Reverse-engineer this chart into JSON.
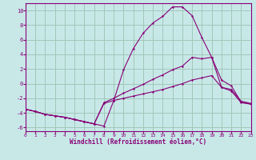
{
  "xlabel": "Windchill (Refroidissement éolien,°C)",
  "background_color": "#c8e8e8",
  "grid_color": "#a0c8b8",
  "line_color": "#880077",
  "xlim": [
    0,
    23
  ],
  "ylim": [
    -6.5,
    11.0
  ],
  "xticks": [
    0,
    1,
    2,
    3,
    4,
    5,
    6,
    7,
    8,
    9,
    10,
    11,
    12,
    13,
    14,
    15,
    16,
    17,
    18,
    19,
    20,
    21,
    22,
    23
  ],
  "yticks": [
    -6,
    -4,
    -2,
    0,
    2,
    4,
    6,
    8,
    10
  ],
  "line1_x": [
    0,
    1,
    2,
    3,
    4,
    5,
    6,
    7,
    8,
    9,
    10,
    11,
    12,
    13,
    14,
    15,
    16,
    17,
    18,
    19,
    20,
    21,
    22,
    23
  ],
  "line1_y": [
    -3.5,
    -3.8,
    -4.2,
    -4.4,
    -4.6,
    -4.9,
    -5.2,
    -5.5,
    -5.8,
    -2.3,
    1.9,
    4.8,
    6.9,
    8.3,
    9.2,
    10.5,
    10.5,
    9.3,
    6.3,
    3.6,
    -0.5,
    -1.0,
    -2.6,
    -2.8
  ],
  "line2_x": [
    0,
    1,
    2,
    3,
    4,
    5,
    6,
    7,
    8,
    9,
    10,
    11,
    12,
    13,
    14,
    15,
    16,
    17,
    18,
    19,
    20,
    21,
    22,
    23
  ],
  "line2_y": [
    -3.5,
    -3.8,
    -4.2,
    -4.4,
    -4.6,
    -4.9,
    -5.2,
    -5.5,
    -2.6,
    -2.0,
    -1.3,
    -0.7,
    -0.1,
    0.6,
    1.2,
    1.9,
    2.4,
    3.6,
    3.4,
    3.6,
    0.5,
    -0.3,
    -2.5,
    -2.8
  ],
  "line3_x": [
    0,
    1,
    2,
    3,
    4,
    5,
    6,
    7,
    8,
    9,
    10,
    11,
    12,
    13,
    14,
    15,
    16,
    17,
    18,
    19,
    20,
    21,
    22,
    23
  ],
  "line3_y": [
    -3.5,
    -3.8,
    -4.2,
    -4.4,
    -4.6,
    -4.9,
    -5.2,
    -5.5,
    -2.7,
    -2.3,
    -2.0,
    -1.7,
    -1.4,
    -1.1,
    -0.8,
    -0.4,
    0.0,
    0.5,
    0.8,
    1.1,
    -0.5,
    -0.8,
    -2.4,
    -2.7
  ]
}
